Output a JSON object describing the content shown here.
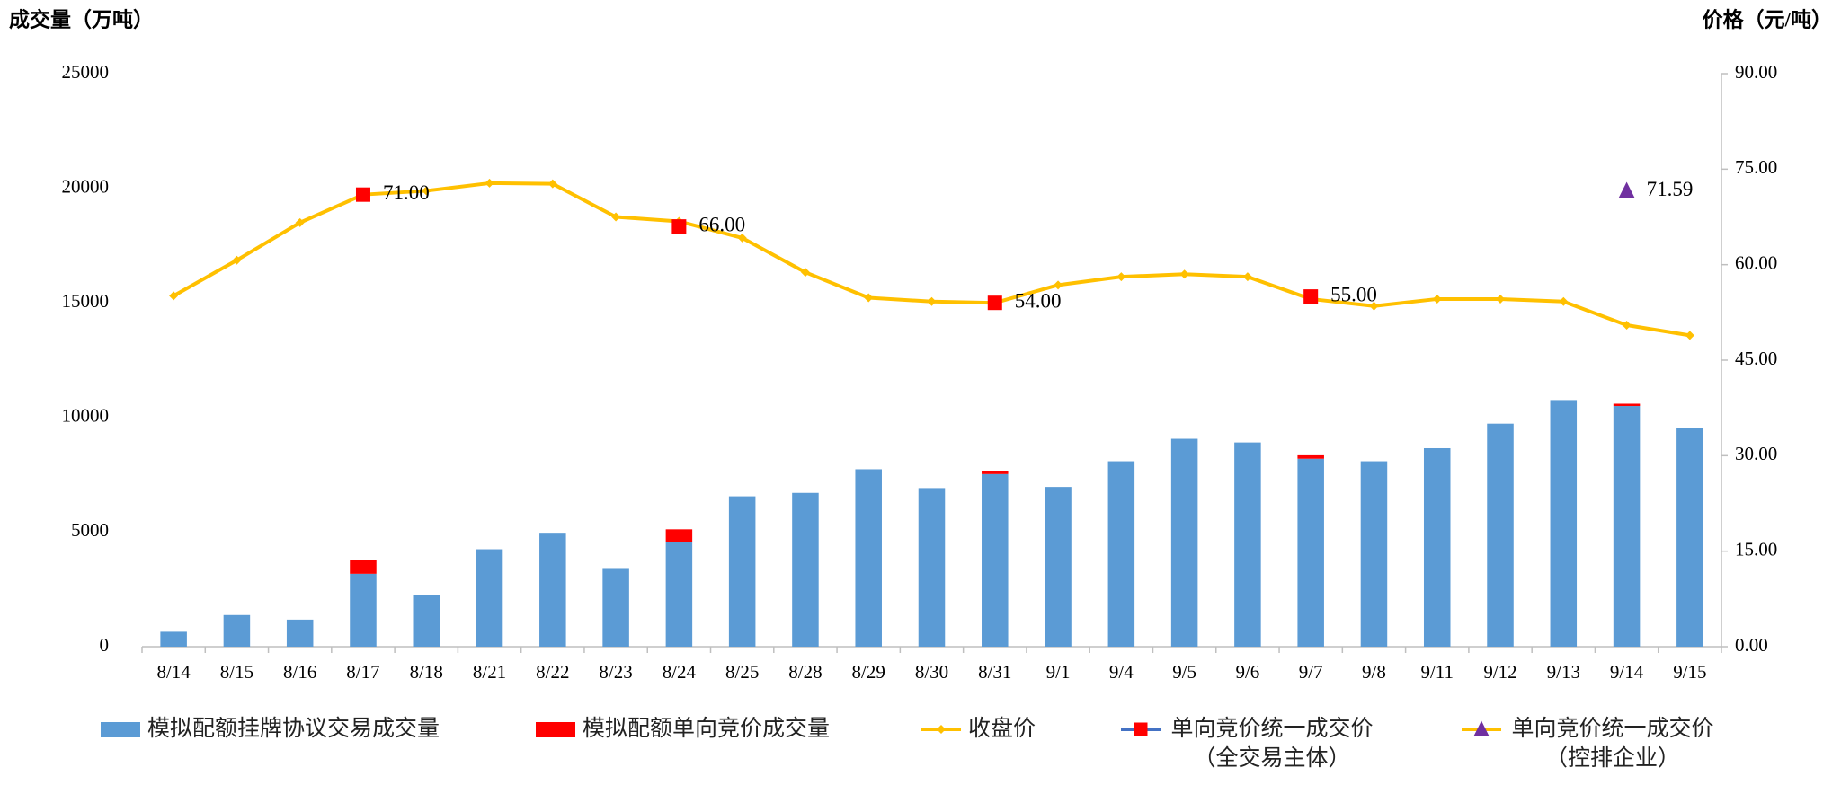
{
  "chart_data": {
    "type": "bar",
    "y_label": "成交量（万吨）",
    "y2_label": "价格（元/吨）",
    "categories": [
      "8/14",
      "8/15",
      "8/16",
      "8/17",
      "8/18",
      "8/21",
      "8/22",
      "8/23",
      "8/24",
      "8/25",
      "8/28",
      "8/29",
      "8/30",
      "8/31",
      "9/1",
      "9/4",
      "9/5",
      "9/6",
      "9/7",
      "9/8",
      "9/11",
      "9/12",
      "9/13",
      "9/14",
      "9/15"
    ],
    "ylim": [
      0,
      25000
    ],
    "yticks": [
      0,
      5000,
      10000,
      15000,
      20000,
      25000
    ],
    "y2lim": [
      0,
      90
    ],
    "y2ticks": [
      {
        "value": 0,
        "label": "0.00"
      },
      {
        "value": 15,
        "label": "15.00"
      },
      {
        "value": 30,
        "label": "30.00"
      },
      {
        "value": 45,
        "label": "45.00"
      },
      {
        "value": 60,
        "label": "60.00"
      },
      {
        "value": 75,
        "label": "75.00"
      },
      {
        "value": 90,
        "label": "90.00"
      }
    ],
    "series": [
      {
        "name": "模拟配额挂牌协议交易成交量",
        "type": "bar",
        "color": "#5b9bd5",
        "values": [
          650,
          1380,
          1180,
          3180,
          2250,
          4250,
          4970,
          3430,
          4560,
          6560,
          6710,
          7740,
          6920,
          7530,
          6970,
          8090,
          9070,
          8910,
          8200,
          8090,
          8660,
          9730,
          10760,
          10500,
          9530
        ]
      },
      {
        "name": "模拟配额单向竞价成交量",
        "type": "bar",
        "color": "#ff0000",
        "values": [
          null,
          null,
          null,
          610,
          null,
          null,
          null,
          null,
          560,
          null,
          null,
          null,
          null,
          150,
          null,
          null,
          null,
          null,
          150,
          null,
          null,
          null,
          null,
          100,
          null
        ]
      },
      {
        "name": "收盘价",
        "type": "line",
        "axis": "y2",
        "color": "#ffc000",
        "marker": "diamond",
        "values": [
          55.1,
          60.7,
          66.6,
          71.0,
          71.6,
          72.8,
          72.7,
          67.5,
          66.8,
          64.2,
          58.8,
          54.8,
          54.2,
          54.0,
          56.8,
          58.1,
          58.5,
          58.1,
          54.6,
          53.5,
          54.6,
          54.6,
          54.2,
          50.5,
          48.9
        ]
      },
      {
        "name": "单向竞价统一成交价（全交易主体）",
        "type": "scatter",
        "axis": "y2",
        "color": "#ff0000",
        "line_color": "#4472c4",
        "marker": "square",
        "values": [
          null,
          null,
          null,
          71,
          null,
          null,
          null,
          null,
          66,
          null,
          null,
          null,
          null,
          54,
          null,
          null,
          null,
          null,
          55,
          null,
          null,
          null,
          null,
          null,
          null
        ],
        "value_labels": [
          null,
          null,
          null,
          "71.00",
          null,
          null,
          null,
          null,
          "66.00",
          null,
          null,
          null,
          null,
          "54.00",
          null,
          null,
          null,
          null,
          "55.00",
          null,
          null,
          null,
          null,
          null,
          null
        ]
      },
      {
        "name": "单向竞价统一成交价（控排企业）",
        "type": "scatter",
        "axis": "y2",
        "color": "#7030a0",
        "line_color": "#ffc000",
        "marker": "triangle",
        "values": [
          null,
          null,
          null,
          null,
          null,
          null,
          null,
          null,
          null,
          null,
          null,
          null,
          null,
          null,
          null,
          null,
          null,
          null,
          null,
          null,
          null,
          null,
          null,
          71.59,
          null
        ],
        "value_labels": [
          null,
          null,
          null,
          null,
          null,
          null,
          null,
          null,
          null,
          null,
          null,
          null,
          null,
          null,
          null,
          null,
          null,
          null,
          null,
          null,
          null,
          null,
          null,
          "71.59",
          null
        ]
      }
    ]
  }
}
